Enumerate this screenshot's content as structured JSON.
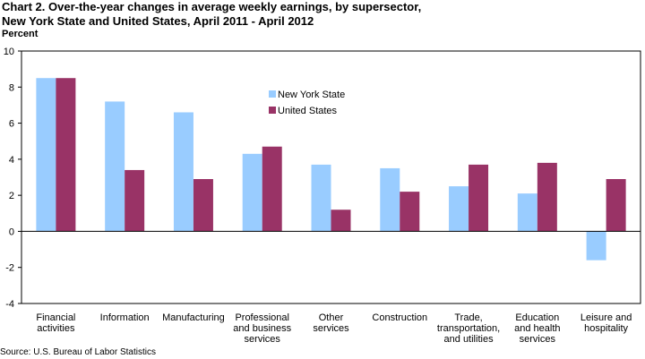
{
  "chart_data": {
    "type": "bar",
    "title_lines": [
      "Chart 2. Over-the-year changes in average weekly earnings, by supersector,",
      "New York State and United States, April 2011 - April 2012"
    ],
    "ylabel": "Percent",
    "xlabel": "",
    "ylim": [
      -4,
      10
    ],
    "yticks": [
      -4,
      -2,
      0,
      2,
      4,
      6,
      8,
      10
    ],
    "grid": false,
    "legend_position": "upper-middle",
    "categories": [
      [
        "Financial",
        "activities"
      ],
      [
        "Information"
      ],
      [
        "Manufacturing"
      ],
      [
        "Professional",
        "and business",
        "services"
      ],
      [
        "Other",
        "services"
      ],
      [
        "Construction"
      ],
      [
        "Trade,",
        "transportation,",
        "and utilities"
      ],
      [
        "Education",
        "and health",
        "services"
      ],
      [
        "Leisure and",
        "hospitality"
      ]
    ],
    "series": [
      {
        "name": "New York State",
        "color": "#99ccff",
        "values": [
          8.5,
          7.2,
          6.6,
          4.3,
          3.7,
          3.5,
          2.5,
          2.1,
          -1.6
        ]
      },
      {
        "name": "United States",
        "color": "#993366",
        "values": [
          8.5,
          3.4,
          2.9,
          4.7,
          1.2,
          2.2,
          3.7,
          3.8,
          2.9
        ]
      }
    ],
    "source": "Source: U.S. Bureau of Labor Statistics"
  }
}
